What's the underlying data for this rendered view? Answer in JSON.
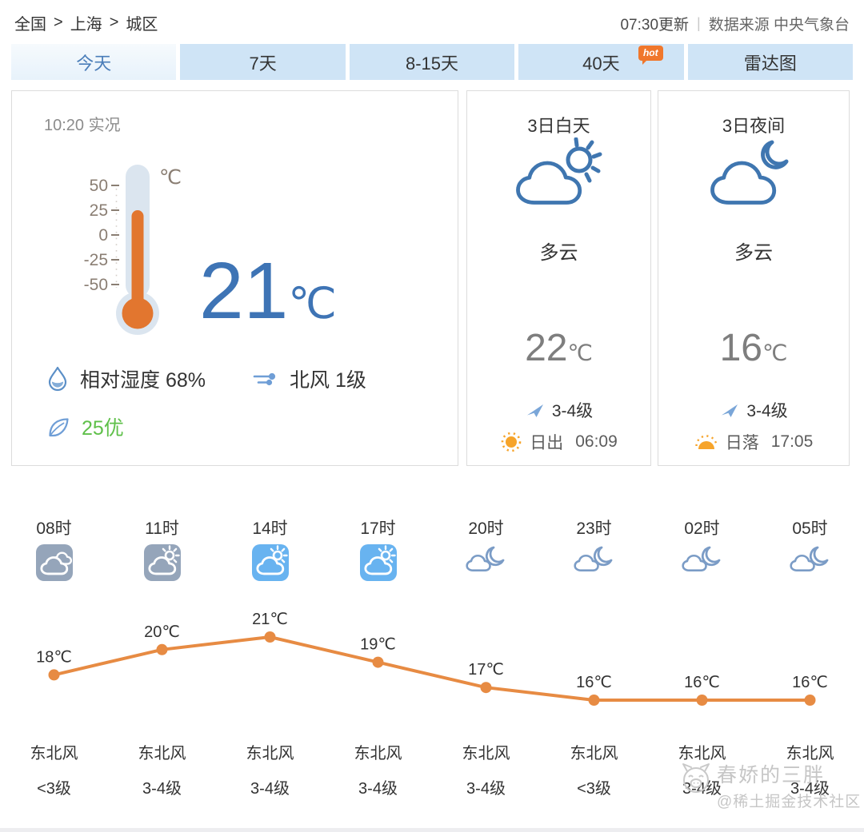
{
  "breadcrumb": {
    "items": [
      "全国",
      "上海",
      "城区"
    ],
    "separator": ">"
  },
  "meta": {
    "update_time": "07:30更新",
    "divider": "|",
    "source": "数据来源 中央气象台"
  },
  "tabs": [
    {
      "key": "today",
      "label": "今天",
      "active": true
    },
    {
      "key": "7days",
      "label": "7天",
      "active": false
    },
    {
      "key": "8-15days",
      "label": "8-15天",
      "active": false
    },
    {
      "key": "40days",
      "label": "40天",
      "active": false,
      "badge": "hot"
    },
    {
      "key": "radar",
      "label": "雷达图",
      "active": false
    }
  ],
  "current": {
    "observed_label": "10:20 实况",
    "temperature": "21",
    "temperature_unit": "℃",
    "thermometer": {
      "unit": "℃",
      "scale": [
        "50",
        "25",
        "0",
        "-25",
        "-50"
      ]
    },
    "humidity": {
      "label": "相对湿度",
      "value": "68%"
    },
    "wind": {
      "direction": "北风",
      "level": "1级"
    },
    "air_quality": {
      "text": "25优"
    }
  },
  "day_panel": {
    "title": "3日白天",
    "condition": "多云",
    "temp": "22",
    "unit": "℃",
    "wind_level": "3-4级",
    "sun_label": "日出",
    "sun_time": "06:09"
  },
  "night_panel": {
    "title": "3日夜间",
    "condition": "多云",
    "temp": "16",
    "unit": "℃",
    "wind_level": "3-4级",
    "sun_label": "日落",
    "sun_time": "17:05"
  },
  "hourly": {
    "items": [
      {
        "time": "08时",
        "icon": "cloudy-tile-gray",
        "wind_dir": "东北风",
        "wind_level": "<3级"
      },
      {
        "time": "11时",
        "icon": "cloud-sun-tile-gray",
        "wind_dir": "东北风",
        "wind_level": "3-4级"
      },
      {
        "time": "14时",
        "icon": "cloud-sun-tile-blue",
        "wind_dir": "东北风",
        "wind_level": "3-4级"
      },
      {
        "time": "17时",
        "icon": "cloud-sun-tile-blue",
        "wind_dir": "东北风",
        "wind_level": "3-4级"
      },
      {
        "time": "20时",
        "icon": "cloud-moon-outline",
        "wind_dir": "东北风",
        "wind_level": "3-4级"
      },
      {
        "time": "23时",
        "icon": "cloud-moon-outline",
        "wind_dir": "东北风",
        "wind_level": "<3级"
      },
      {
        "time": "02时",
        "icon": "cloud-moon-outline",
        "wind_dir": "东北风",
        "wind_level": "3-4级"
      },
      {
        "time": "05时",
        "icon": "cloud-moon-outline",
        "wind_dir": "东北风",
        "wind_level": "3-4级"
      }
    ]
  },
  "chart_data": {
    "type": "line",
    "x": [
      "08时",
      "11时",
      "14时",
      "17时",
      "20时",
      "23时",
      "02时",
      "05时"
    ],
    "values": [
      18,
      20,
      21,
      19,
      17,
      16,
      16,
      16
    ],
    "unit": "℃",
    "title": "",
    "xlabel": "",
    "ylabel": "",
    "ylim": [
      15,
      22
    ],
    "grid": false,
    "legend": false,
    "line_color": "#e78b43",
    "label_color": "#333333"
  },
  "watermark": {
    "line1": "春娇的三胖",
    "line2": "@稀土掘金技术社区"
  },
  "colors": {
    "accent_blue": "#4a7db9",
    "tab_bg": "#cfe4f6",
    "temp_blue": "#3e74b5",
    "mercury_orange": "#e2762f",
    "chart_line": "#e78b43",
    "aqi_green": "#5fc04a",
    "icon_blue": "#3f76b0",
    "icon_lightblue": "#7b9cc6",
    "tile_gray": "#95a5ba",
    "tile_blue": "#68b3f0",
    "hot_badge": "#f0772c",
    "sun_orange": "#f6a42b",
    "stat_icon_blue": "#6f9ed6",
    "watermark_gray": "#c9c9c9"
  }
}
